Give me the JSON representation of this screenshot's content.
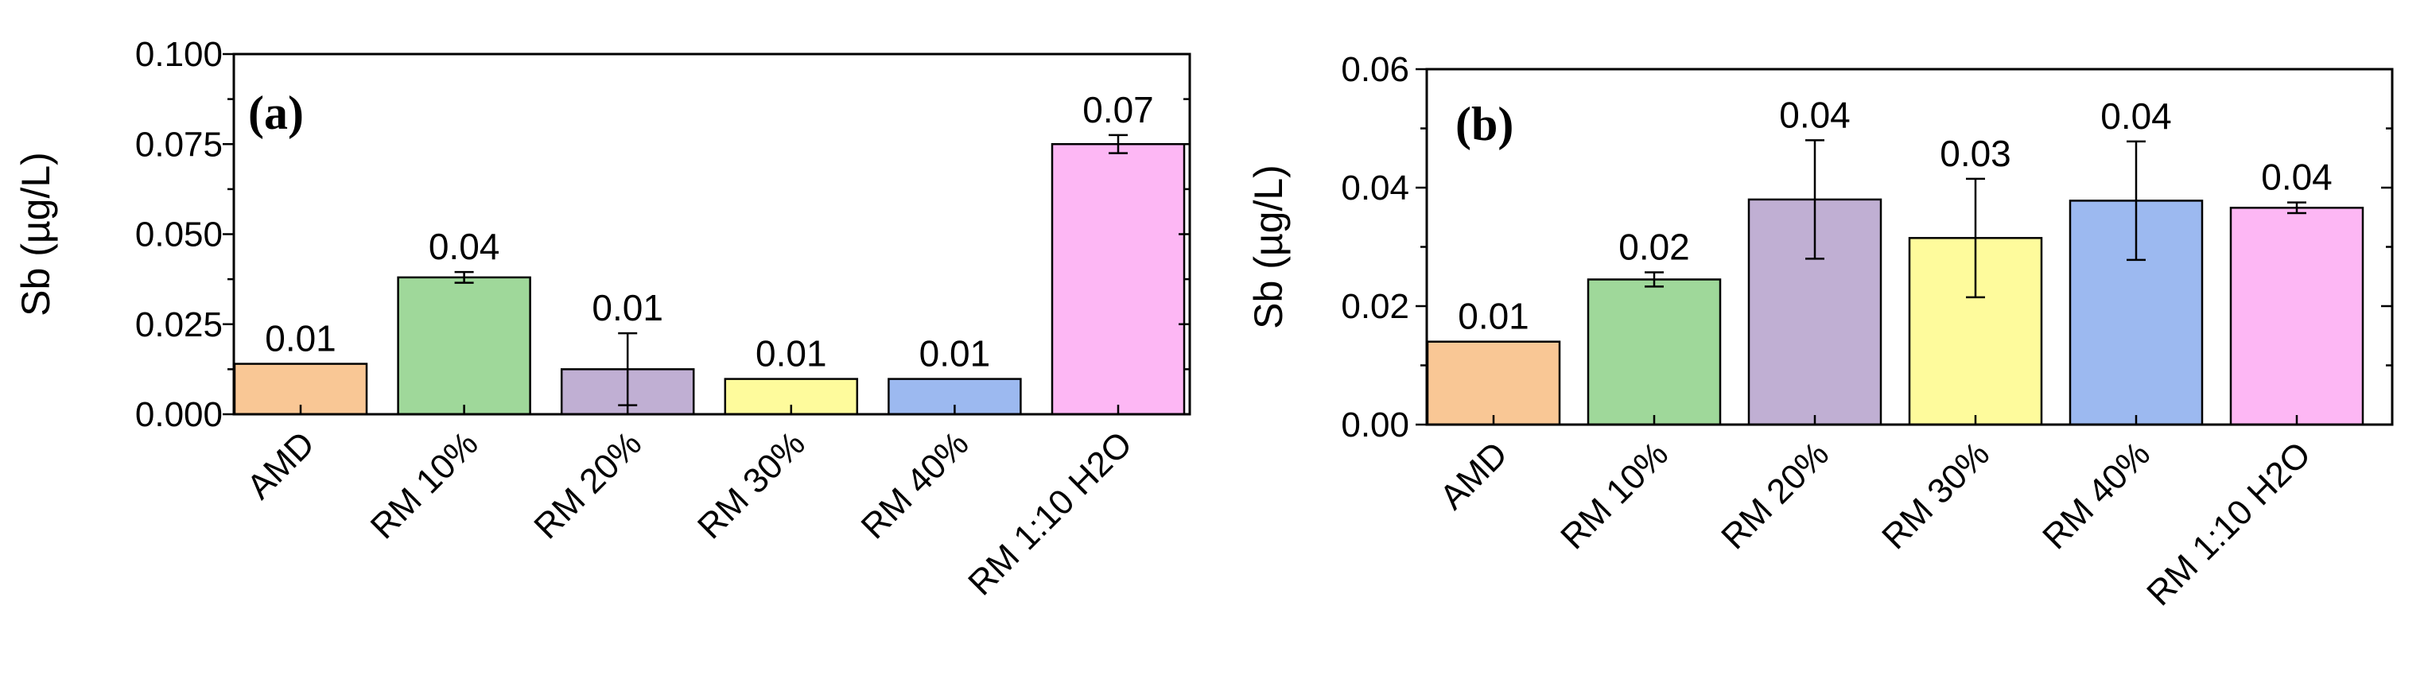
{
  "colors": {
    "AMD": "#F9C795",
    "RM 10%": "#9FD89A",
    "RM 20%": "#C0AFD3",
    "RM 30%": "#FEFB9C",
    "RM 40%": "#9CB9F0",
    "RM 1:10 H2O": "#FDB7F4",
    "axis": "#000000",
    "error_bar": "#000000"
  },
  "chart_data": [
    {
      "type": "bar",
      "panel_label": "(a)",
      "ylabel": "Sb (µg/L)",
      "categories": [
        "AMD",
        "RM 10%",
        "RM 20%",
        "RM 30%",
        "RM 40%",
        "RM 1:10 H2O"
      ],
      "values": [
        0.014,
        0.038,
        0.0125,
        0.0098,
        0.0098,
        0.075
      ],
      "errors": [
        0,
        0.0015,
        0.01,
        0,
        0,
        0.0025
      ],
      "data_labels": [
        "0.01",
        "0.04",
        "0.01",
        "0.01",
        "0.01",
        "0.07"
      ],
      "ylim": [
        0,
        0.1
      ],
      "yticks": [
        0,
        0.025,
        0.05,
        0.075,
        0.1
      ],
      "ytick_labels": [
        "0.000",
        "0.025",
        "0.050",
        "0.075",
        "0.100"
      ],
      "grid": false
    },
    {
      "type": "bar",
      "panel_label": "(b)",
      "ylabel": "Sb (µg/L)",
      "categories": [
        "AMD",
        "RM 10%",
        "RM 20%",
        "RM 30%",
        "RM 40%",
        "RM 1:10 H2O"
      ],
      "values": [
        0.014,
        0.0245,
        0.038,
        0.0315,
        0.0378,
        0.0366
      ],
      "errors": [
        0,
        0.0012,
        0.01,
        0.01,
        0.01,
        0.0009
      ],
      "data_labels": [
        "0.01",
        "0.02",
        "0.04",
        "0.03",
        "0.04",
        "0.04"
      ],
      "ylim": [
        0,
        0.06
      ],
      "yticks": [
        0,
        0.02,
        0.04,
        0.06
      ],
      "ytick_labels": [
        "0.00",
        "0.02",
        "0.04",
        "0.06"
      ],
      "grid": false
    }
  ]
}
